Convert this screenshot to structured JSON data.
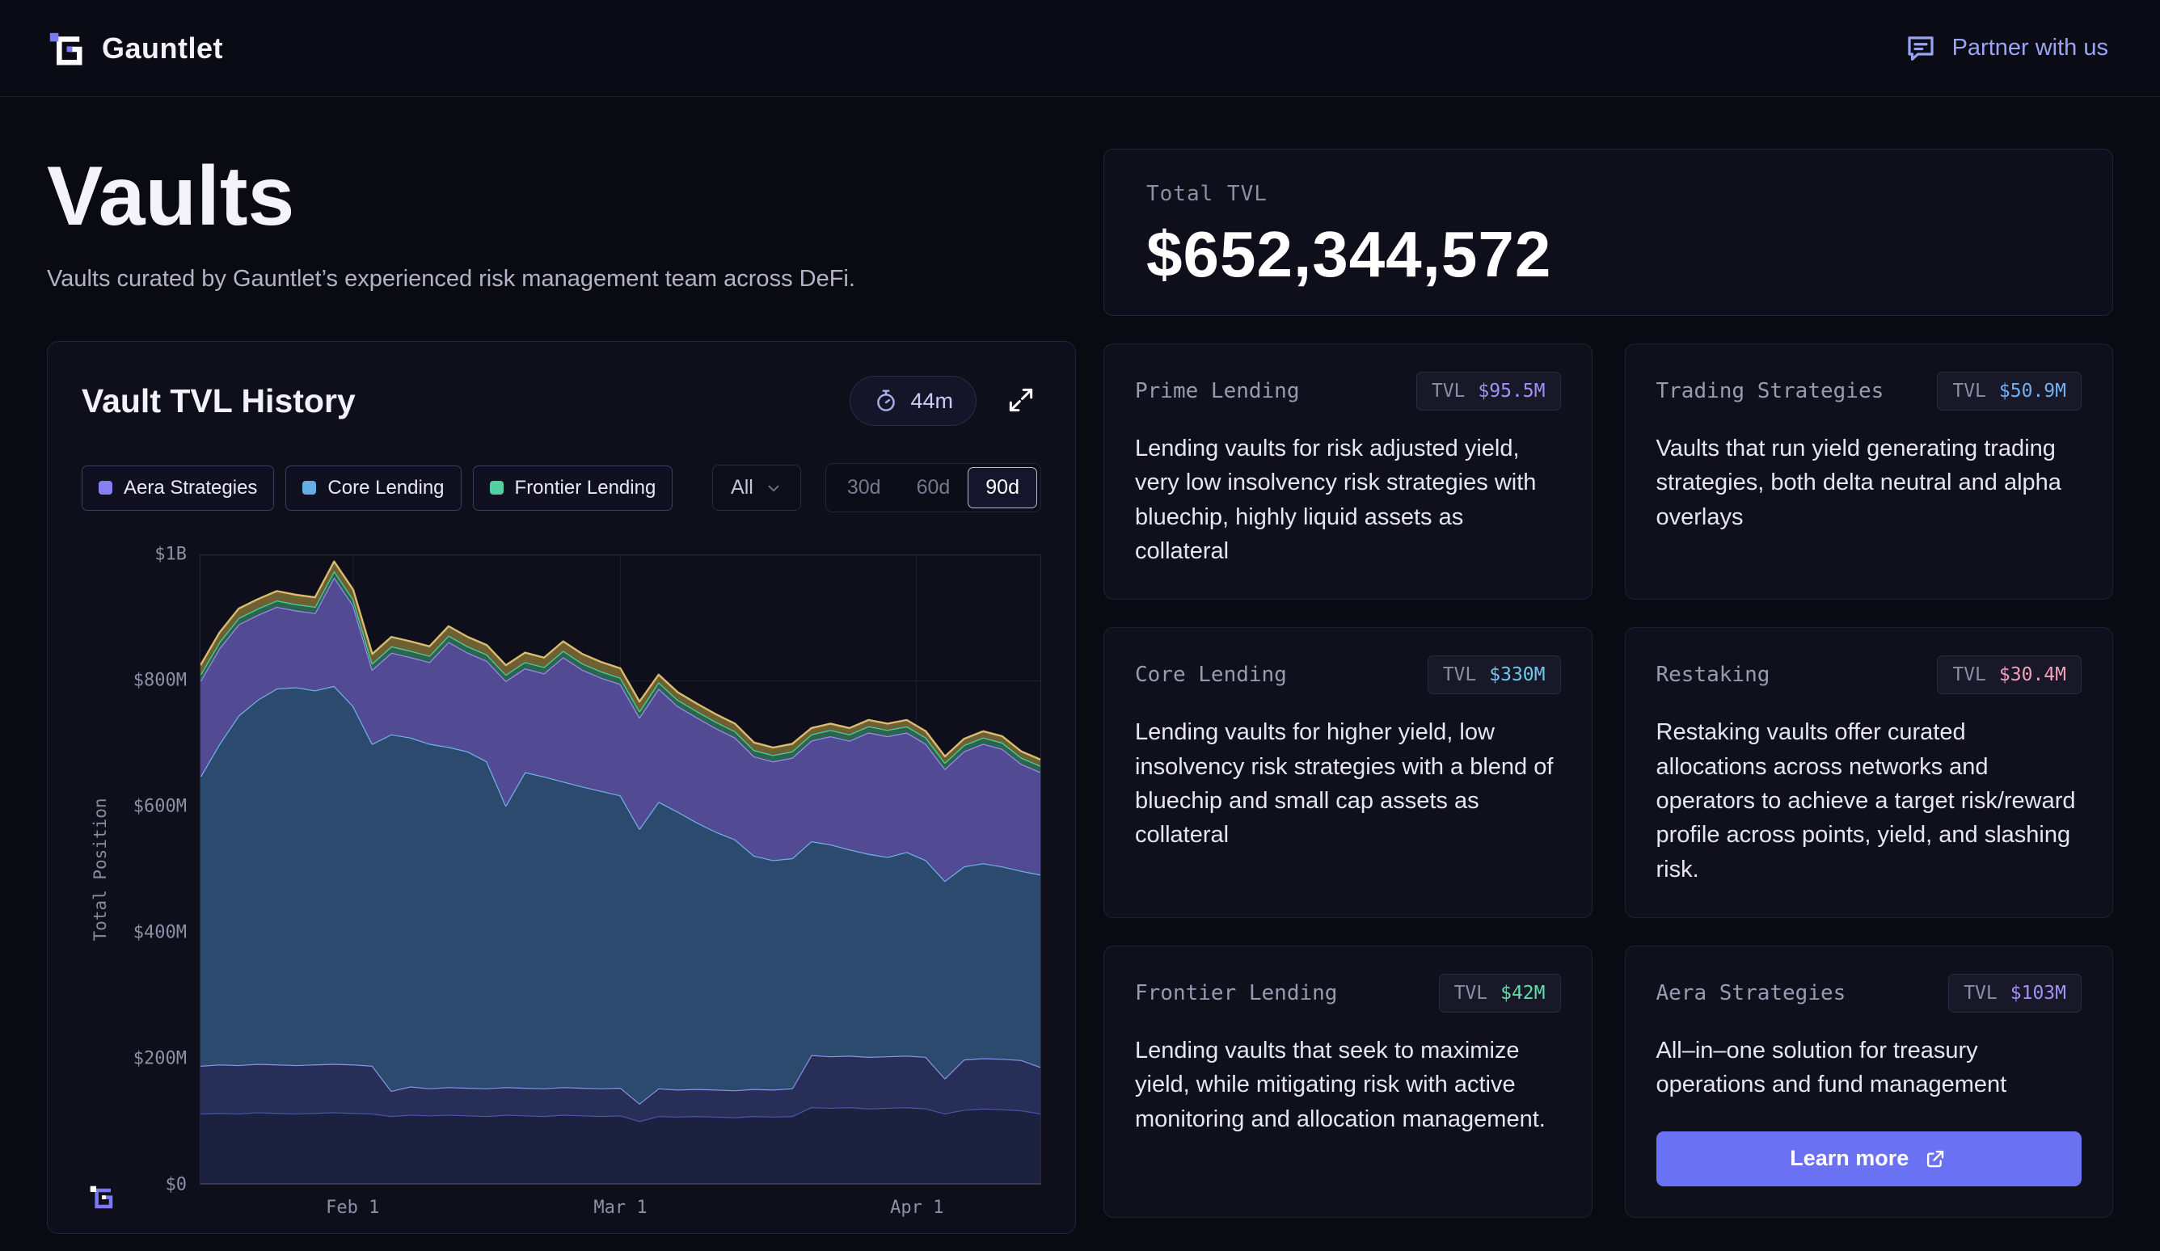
{
  "navbar": {
    "brand": "Gauntlet",
    "partner_label": "Partner with us"
  },
  "hero": {
    "title": "Vaults",
    "subtitle": "Vaults curated by Gauntlet’s experienced risk management team across DeFi."
  },
  "tvl_history": {
    "title": "Vault TVL History",
    "timer": "44m",
    "legend": [
      {
        "label": "Aera Strategies",
        "color": "#8781f0"
      },
      {
        "label": "Core Lending",
        "color": "#64aee6"
      },
      {
        "label": "Frontier Lending",
        "color": "#4fd0a0"
      }
    ],
    "filters": {
      "all_label": "All",
      "ranges": [
        "30d",
        "60d",
        "90d"
      ],
      "active_range": "90d"
    }
  },
  "total_tvl": {
    "label": "Total TVL",
    "value": "$652,344,572"
  },
  "categories": [
    {
      "name": "Prime Lending",
      "tvl_label": "TVL",
      "tvl": "$95.5M",
      "tvl_color": "#a091f5",
      "description": "Lending vaults for risk adjusted yield, very low insolvency risk strategies with bluechip, highly liquid assets as collateral"
    },
    {
      "name": "Trading Strategies",
      "tvl_label": "TVL",
      "tvl": "$50.9M",
      "tvl_color": "#6fb0f2",
      "description": "Vaults that run yield generating trading strategies, both delta neutral and alpha overlays"
    },
    {
      "name": "Core Lending",
      "tvl_label": "TVL",
      "tvl": "$330M",
      "tvl_color": "#6fc9ee",
      "description": "Lending vaults for higher yield, low insolvency risk strategies with a blend of bluechip and small cap assets as collateral"
    },
    {
      "name": "Restaking",
      "tvl_label": "TVL",
      "tvl": "$30.4M",
      "tvl_color": "#f0a0ba",
      "description": "Restaking vaults offer curated allocations across networks and operators to achieve a target risk/reward profile across points, yield, and slashing risk."
    },
    {
      "name": "Frontier Lending",
      "tvl_label": "TVL",
      "tvl": "$42M",
      "tvl_color": "#5ce0a7",
      "description": "Lending vaults that seek to maximize yield, while mitigating risk with active monitoring and allocation management."
    },
    {
      "name": "Aera Strategies",
      "tvl_label": "TVL",
      "tvl": "$103M",
      "tvl_color": "#a091f5",
      "description": "All–in–one solution for treasury operations and fund management",
      "cta": "Learn more"
    }
  ],
  "chart_data": {
    "type": "area",
    "title": "Vault TVL History",
    "ylabel": "Total Position",
    "values_unit": "$M",
    "stacked_cumulative_tops": true,
    "ylim": [
      0,
      1000
    ],
    "y_ticks": [
      "$0",
      "$200M",
      "$400M",
      "$600M",
      "$800M",
      "$1B"
    ],
    "y_tick_values": [
      0,
      200,
      400,
      600,
      800,
      1000
    ],
    "x_domain": [
      0,
      88
    ],
    "x_ticks": [
      {
        "label": "Feb 1",
        "day": 16
      },
      {
        "label": "Mar 1",
        "day": 44
      },
      {
        "label": "Apr 1",
        "day": 75
      }
    ],
    "days": [
      0,
      2,
      4,
      6,
      8,
      10,
      12,
      14,
      16,
      18,
      20,
      22,
      24,
      26,
      28,
      30,
      32,
      34,
      36,
      38,
      40,
      42,
      44,
      46,
      48,
      50,
      52,
      54,
      56,
      58,
      60,
      62,
      64,
      66,
      68,
      70,
      72,
      74,
      76,
      78,
      80,
      82,
      84,
      86,
      88
    ],
    "series": [
      {
        "name": "lower band (unlabeled)",
        "line": "#4a55a8",
        "fill": "#1c2140",
        "tops": [
          112,
          113,
          112,
          114,
          113,
          112,
          113,
          114,
          113,
          112,
          108,
          110,
          109,
          110,
          109,
          108,
          110,
          109,
          108,
          110,
          109,
          108,
          109,
          100,
          108,
          107,
          108,
          107,
          106,
          108,
          107,
          108,
          122,
          121,
          122,
          120,
          121,
          122,
          120,
          112,
          118,
          120,
          119,
          117,
          112
        ]
      },
      {
        "name": "second band (unlabeled)",
        "line": "#8a93e8",
        "fill": "#272e58",
        "tops": [
          188,
          190,
          189,
          191,
          190,
          189,
          190,
          191,
          190,
          188,
          148,
          155,
          152,
          154,
          153,
          152,
          154,
          153,
          152,
          154,
          153,
          152,
          153,
          128,
          152,
          150,
          151,
          150,
          149,
          151,
          150,
          152,
          205,
          203,
          204,
          202,
          203,
          204,
          202,
          168,
          198,
          200,
          199,
          197,
          186
        ]
      },
      {
        "name": "Core Lending",
        "line": "#6fb3ec",
        "fill": "#2b4a6d",
        "tops": [
          648,
          700,
          745,
          770,
          788,
          790,
          785,
          792,
          760,
          700,
          715,
          710,
          700,
          695,
          688,
          672,
          602,
          655,
          648,
          640,
          632,
          625,
          618,
          565,
          608,
          592,
          575,
          560,
          548,
          522,
          515,
          518,
          545,
          540,
          532,
          525,
          520,
          528,
          515,
          482,
          505,
          510,
          505,
          498,
          492
        ]
      },
      {
        "name": "Aera Strategies",
        "line": "#9a8ef0",
        "fill": "#524b94",
        "tops": [
          800,
          852,
          890,
          905,
          918,
          912,
          908,
          965,
          920,
          818,
          845,
          838,
          830,
          862,
          845,
          832,
          800,
          820,
          812,
          838,
          818,
          805,
          795,
          742,
          788,
          760,
          742,
          725,
          710,
          680,
          672,
          678,
          705,
          712,
          705,
          718,
          712,
          718,
          700,
          660,
          688,
          700,
          692,
          668,
          655
        ]
      },
      {
        "name": "Frontier Lending",
        "line": "#45d6a0",
        "fill": "#2c6450",
        "tops": [
          810,
          862,
          900,
          915,
          928,
          922,
          918,
          975,
          930,
          828,
          855,
          848,
          840,
          872,
          855,
          842,
          810,
          830,
          822,
          848,
          828,
          815,
          805,
          752,
          798,
          770,
          752,
          735,
          720,
          690,
          682,
          688,
          715,
          722,
          715,
          728,
          722,
          728,
          710,
          670,
          698,
          710,
          702,
          678,
          665
        ]
      },
      {
        "name": "upper band (unlabeled)",
        "line": "#d9bc6d",
        "fill": "#6e6033",
        "tops": [
          825,
          877,
          915,
          930,
          943,
          937,
          933,
          990,
          945,
          843,
          870,
          863,
          855,
          887,
          870,
          857,
          825,
          845,
          837,
          863,
          843,
          830,
          820,
          767,
          810,
          782,
          764,
          747,
          732,
          702,
          694,
          700,
          725,
          732,
          725,
          738,
          732,
          738,
          720,
          680,
          708,
          720,
          712,
          688,
          675
        ]
      }
    ]
  }
}
